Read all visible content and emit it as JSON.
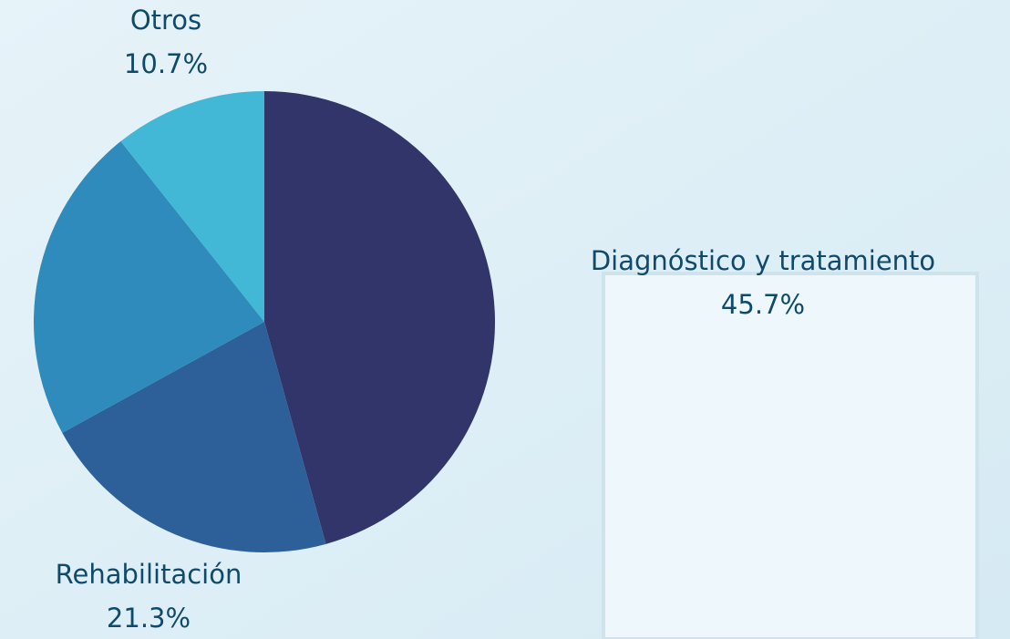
{
  "chart_data": {
    "type": "pie",
    "categories": [
      "Diagnóstico y tratamiento",
      "Rehabilitación",
      null,
      "Otros"
    ],
    "values": [
      45.7,
      21.3,
      22.3,
      10.7
    ],
    "value_labels": [
      "45.7%",
      "21.3%",
      null,
      "10.7%"
    ],
    "colors": [
      "#313569",
      "#2d5f99",
      "#2e8bbb",
      "#42b8d6"
    ]
  }
}
